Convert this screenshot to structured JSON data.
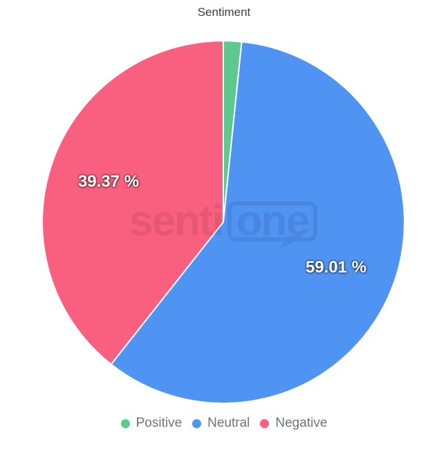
{
  "chart_data": {
    "type": "pie",
    "title": "Sentiment",
    "legend_position": "bottom",
    "direction": "clockwise",
    "start_angle_deg": 0,
    "center": [
      323,
      321
    ],
    "radius": 262,
    "label_radius_ratio": 0.67,
    "slice_border_color": "#ffffff",
    "series": [
      {
        "name": "Positive",
        "value": 1.62,
        "color": "#5ec98e",
        "label": null
      },
      {
        "name": "Neutral",
        "value": 59.01,
        "color": "#4f93f3",
        "label": "59.01 %"
      },
      {
        "name": "Negative",
        "value": 39.37,
        "color": "#f9607f",
        "label": "39.37 %"
      }
    ]
  },
  "watermark": {
    "left": "senti",
    "right": "one"
  }
}
